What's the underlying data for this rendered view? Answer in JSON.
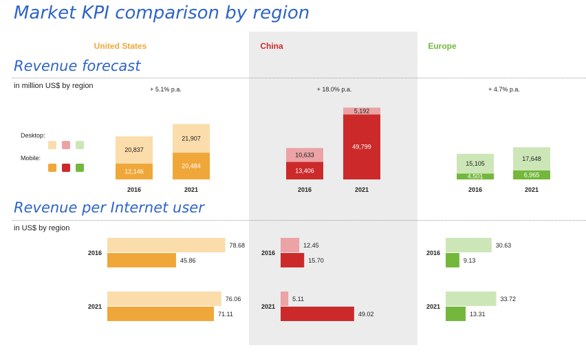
{
  "title": "Market KPI comparison by region",
  "sections": {
    "forecast": {
      "title": "Revenue forecast",
      "subtitle": "in million US$ by region"
    },
    "per_user": {
      "title": "Revenue per Internet user",
      "subtitle": "in US$ by region"
    }
  },
  "legend": {
    "desktop": "Desktop:",
    "mobile": "Mobile:"
  },
  "regions": [
    {
      "name": "United States",
      "growth": "+ 5.1% p.a.",
      "color_mobile": "#f0a73a",
      "color_desktop": "#fbdcab"
    },
    {
      "name": "China",
      "growth": "+ 18.0% p.a.",
      "color_mobile": "#cc2a2a",
      "color_desktop": "#eba3a5"
    },
    {
      "name": "Europe",
      "growth": "+ 4.7% p.a.",
      "color_mobile": "#73b83c",
      "color_desktop": "#cde6b8"
    }
  ],
  "chart_data": [
    {
      "type": "bar",
      "stacked": true,
      "title": "Revenue forecast",
      "subtitle": "in million US$ by region",
      "categories": [
        "2016",
        "2021"
      ],
      "groups": [
        "United States",
        "China",
        "Europe"
      ],
      "series": [
        {
          "name": "Mobile",
          "values": {
            "United States": [
              12146,
              20484
            ],
            "China": [
              13406,
              49799
            ],
            "Europe": [
              4501,
              6965
            ]
          },
          "labels": {
            "United States": [
              "12,146",
              "20,484"
            ],
            "China": [
              "13,406",
              "49,799"
            ],
            "Europe": [
              "4,501",
              "6,965"
            ]
          }
        },
        {
          "name": "Desktop",
          "values": {
            "United States": [
              20837,
              21907
            ],
            "China": [
              10633,
              5192
            ],
            "Europe": [
              15105,
              17648
            ]
          },
          "labels": {
            "United States": [
              "20,837",
              "21,907"
            ],
            "China": [
              "10,633",
              "5,192"
            ],
            "Europe": [
              "15,105",
              "17,648"
            ]
          }
        }
      ]
    },
    {
      "type": "bar",
      "orientation": "horizontal",
      "title": "Revenue per Internet user",
      "subtitle": "in US$ by region",
      "categories": [
        "2016",
        "2021"
      ],
      "groups": [
        "United States",
        "China",
        "Europe"
      ],
      "series": [
        {
          "name": "Desktop",
          "values": {
            "United States": [
              78.68,
              76.06
            ],
            "China": [
              12.45,
              5.11
            ],
            "Europe": [
              30.63,
              33.72
            ]
          },
          "labels": {
            "United States": [
              "78.68",
              "76.06"
            ],
            "China": [
              "12.45",
              "5.11"
            ],
            "Europe": [
              "30.63",
              "33.72"
            ]
          }
        },
        {
          "name": "Mobile",
          "values": {
            "United States": [
              45.86,
              71.11
            ],
            "China": [
              15.7,
              49.02
            ],
            "Europe": [
              9.13,
              13.31
            ]
          },
          "labels": {
            "United States": [
              "45.86",
              "71.11"
            ],
            "China": [
              "15.70",
              "49.02"
            ],
            "Europe": [
              "9.13",
              "13.31"
            ]
          }
        }
      ]
    }
  ]
}
